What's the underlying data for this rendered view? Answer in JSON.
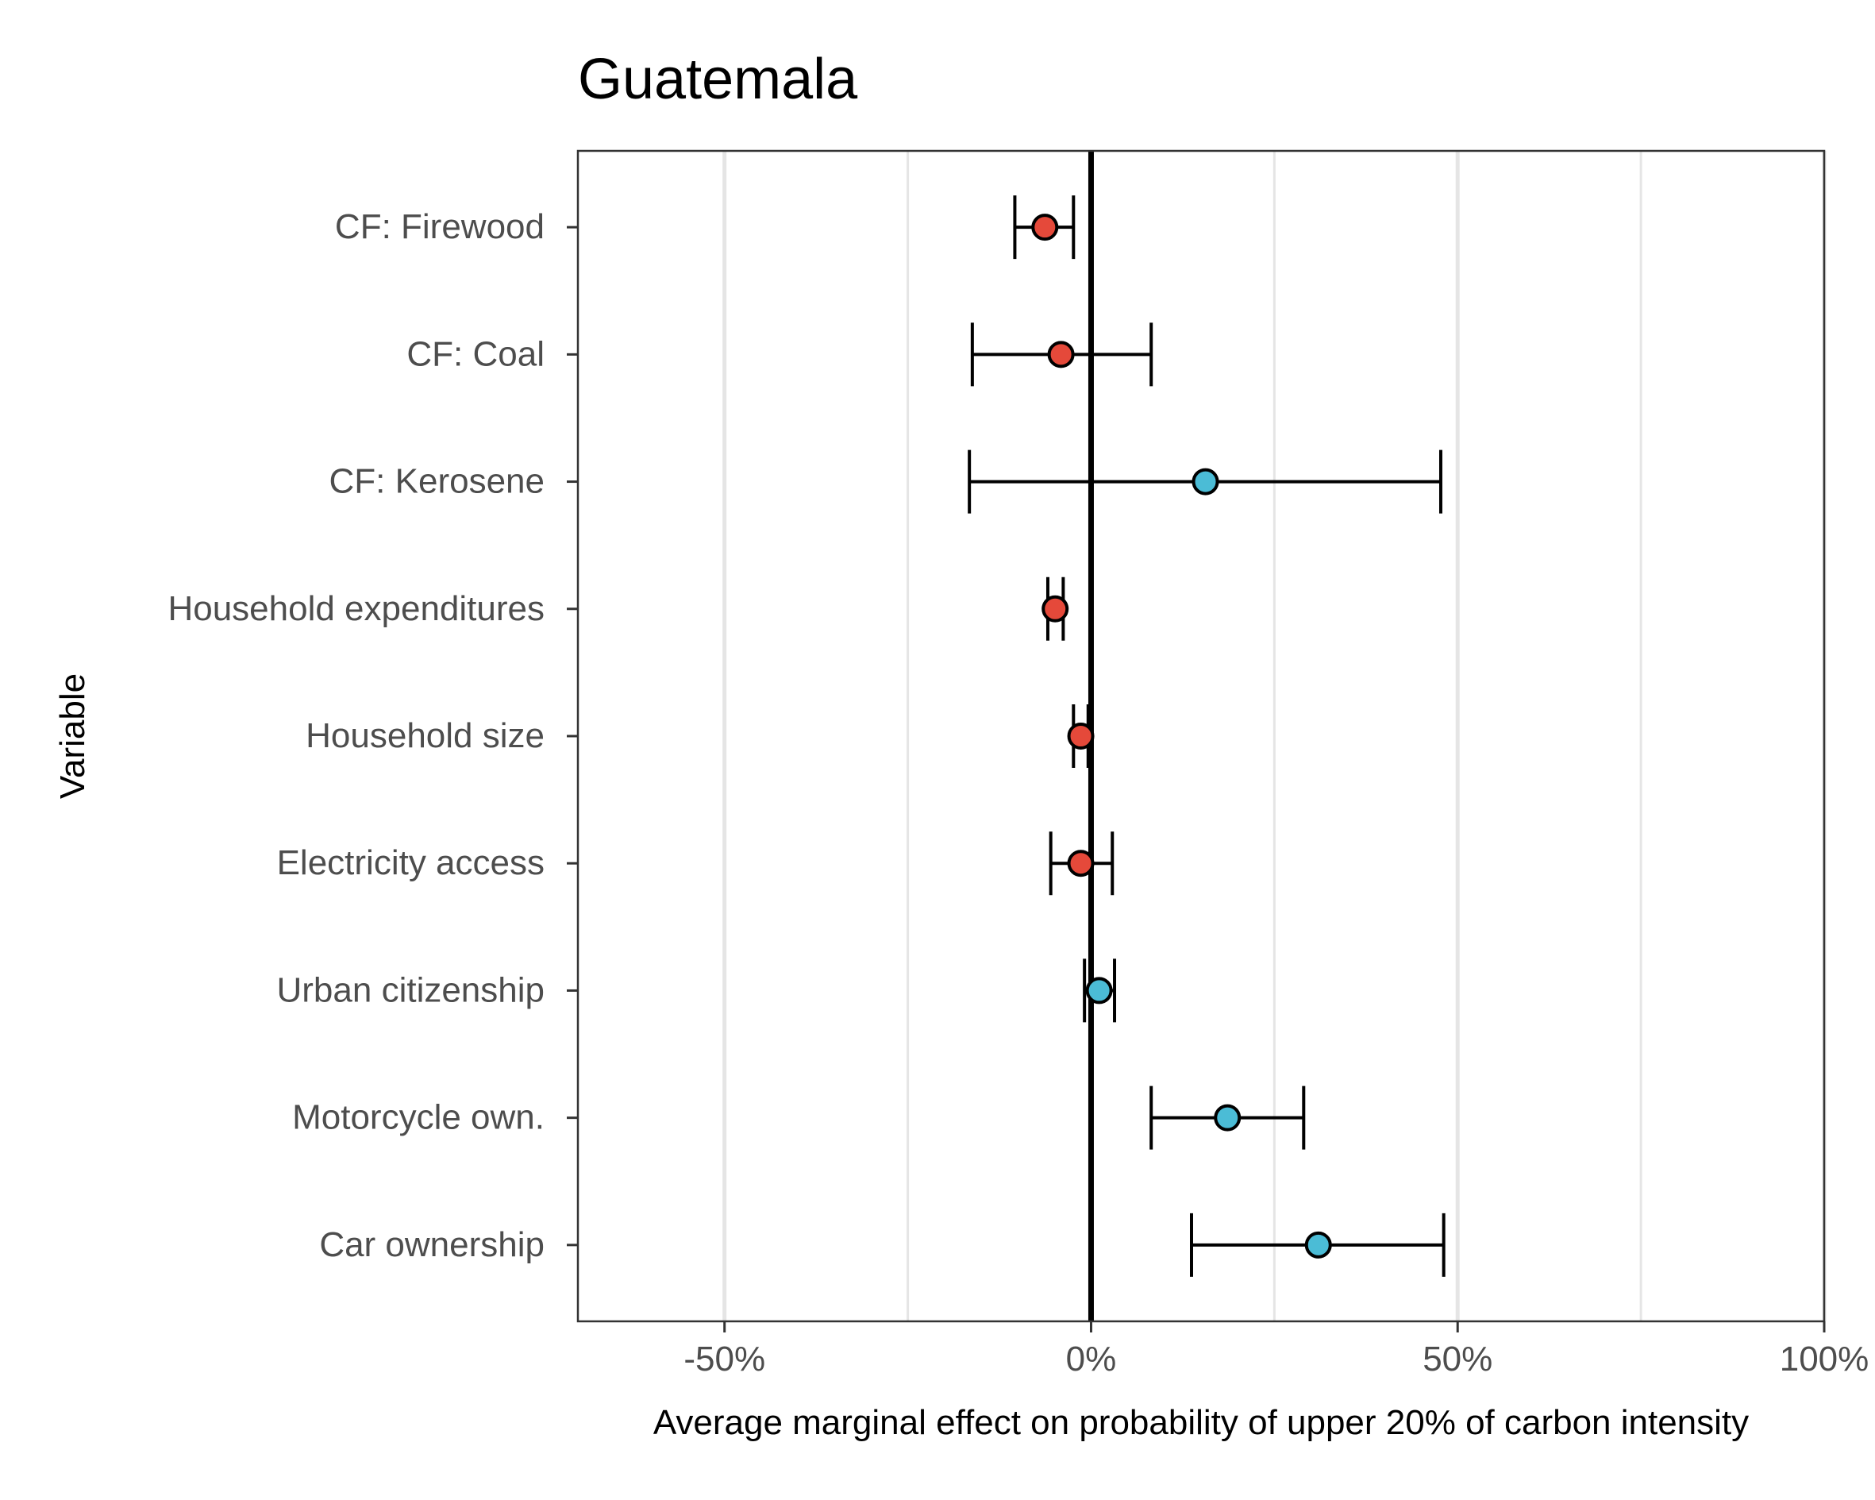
{
  "chart_data": {
    "type": "scatter",
    "title": "Guatemala",
    "xlabel": "Average marginal effect on probability of upper 20% of carbon intensity",
    "ylabel": "Variable",
    "xlim": [
      -0.7,
      1.0
    ],
    "x_ticks": [
      {
        "value": -0.5,
        "label": "-50%"
      },
      {
        "value": 0.0,
        "label": "0%"
      },
      {
        "value": 0.5,
        "label": "50%"
      },
      {
        "value": 1.0,
        "label": "100%"
      }
    ],
    "grid": true,
    "legend": "none",
    "reference_line": 0,
    "colors": {
      "positive": "#4bbcd6",
      "negative": "#e5493a",
      "axis": "#000000",
      "grid": "#e5e5e5",
      "tick_label": "#4d4d4d"
    },
    "categories": [
      "CF: Firewood",
      "CF: Coal",
      "CF: Kerosene",
      "Household expenditures",
      "Household size",
      "Electricity access",
      "Urban citizenship",
      "Motorcycle own.",
      "Car ownership"
    ],
    "points": [
      {
        "label": "CF: Firewood",
        "estimate": -0.063,
        "ci_low": -0.104,
        "ci_high": -0.024,
        "sign": "negative"
      },
      {
        "label": "CF: Coal",
        "estimate": -0.041,
        "ci_low": -0.162,
        "ci_high": 0.082,
        "sign": "negative"
      },
      {
        "label": "CF: Kerosene",
        "estimate": 0.156,
        "ci_low": -0.166,
        "ci_high": 0.477,
        "sign": "positive"
      },
      {
        "label": "Household expenditures",
        "estimate": -0.049,
        "ci_low": -0.059,
        "ci_high": -0.038,
        "sign": "negative"
      },
      {
        "label": "Household size",
        "estimate": -0.014,
        "ci_low": -0.024,
        "ci_high": -0.004,
        "sign": "negative"
      },
      {
        "label": "Electricity access",
        "estimate": -0.014,
        "ci_low": -0.055,
        "ci_high": 0.029,
        "sign": "negative"
      },
      {
        "label": "Urban citizenship",
        "estimate": 0.011,
        "ci_low": -0.009,
        "ci_high": 0.032,
        "sign": "positive"
      },
      {
        "label": "Motorcycle own.",
        "estimate": 0.186,
        "ci_low": 0.082,
        "ci_high": 0.29,
        "sign": "positive"
      },
      {
        "label": "Car ownership",
        "estimate": 0.31,
        "ci_low": 0.137,
        "ci_high": 0.481,
        "sign": "positive"
      }
    ]
  }
}
